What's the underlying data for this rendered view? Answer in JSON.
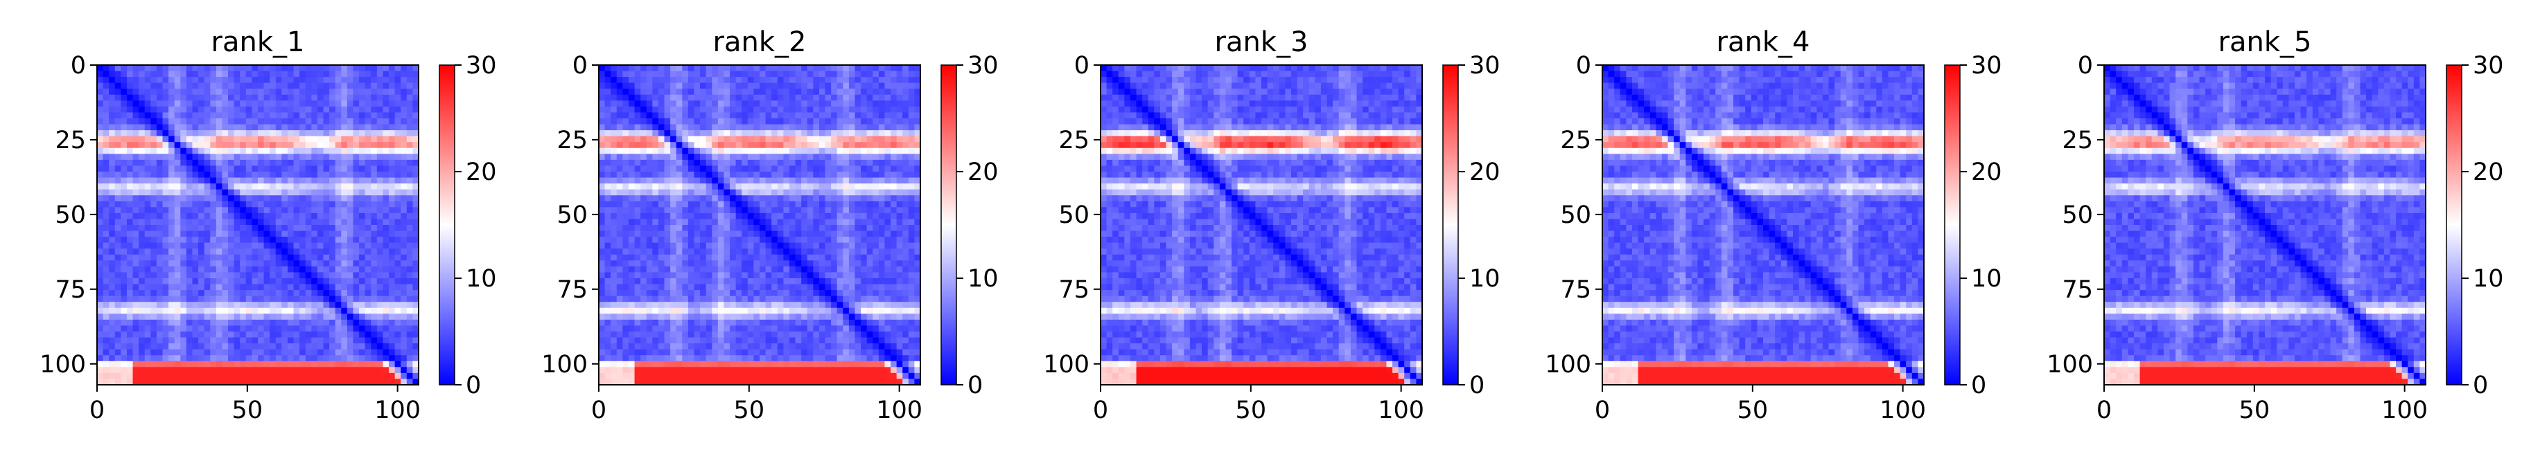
{
  "figure": {
    "panels": [
      {
        "title": "rank_1"
      },
      {
        "title": "rank_2"
      },
      {
        "title": "rank_3"
      },
      {
        "title": "rank_4"
      },
      {
        "title": "rank_5"
      }
    ]
  },
  "chart_data": [
    {
      "type": "heatmap",
      "title": "rank_1",
      "xlim": [
        0,
        107
      ],
      "ylim": [
        107,
        0
      ],
      "xticks": [
        0,
        50,
        100
      ],
      "yticks": [
        0,
        25,
        50,
        75,
        100
      ],
      "colorbar": {
        "range": [
          0,
          30
        ],
        "ticks": [
          0,
          10,
          20,
          30
        ],
        "colormap": "bwr",
        "colors": [
          "#0000ff",
          "#ffffff",
          "#ff0000"
        ]
      },
      "features": {
        "diagonal_value": 0,
        "background_value": 4,
        "stripe_rows": [
          26,
          41,
          82
        ],
        "stripe_values": [
          22,
          13,
          14
        ],
        "bottom_band_rows": [
          99,
          107
        ],
        "bottom_band_value": 28
      }
    },
    {
      "type": "heatmap",
      "title": "rank_2",
      "xlim": [
        0,
        107
      ],
      "ylim": [
        107,
        0
      ],
      "xticks": [
        0,
        50,
        100
      ],
      "yticks": [
        0,
        25,
        50,
        75,
        100
      ],
      "colorbar": {
        "range": [
          0,
          30
        ],
        "ticks": [
          0,
          10,
          20,
          30
        ],
        "colormap": "bwr",
        "colors": [
          "#0000ff",
          "#ffffff",
          "#ff0000"
        ]
      },
      "features": {
        "diagonal_value": 0,
        "background_value": 4,
        "stripe_rows": [
          26,
          41,
          82
        ],
        "stripe_values": [
          23,
          13,
          14
        ],
        "bottom_band_rows": [
          99,
          107
        ],
        "bottom_band_value": 28
      }
    },
    {
      "type": "heatmap",
      "title": "rank_3",
      "xlim": [
        0,
        107
      ],
      "ylim": [
        107,
        0
      ],
      "xticks": [
        0,
        50,
        100
      ],
      "yticks": [
        0,
        25,
        50,
        75,
        100
      ],
      "colorbar": {
        "range": [
          0,
          30
        ],
        "ticks": [
          0,
          10,
          20,
          30
        ],
        "colormap": "bwr",
        "colors": [
          "#0000ff",
          "#ffffff",
          "#ff0000"
        ]
      },
      "features": {
        "diagonal_value": 0,
        "background_value": 4,
        "stripe_rows": [
          26,
          41,
          82
        ],
        "stripe_values": [
          27,
          13,
          14
        ],
        "bottom_band_rows": [
          99,
          107
        ],
        "bottom_band_value": 29
      }
    },
    {
      "type": "heatmap",
      "title": "rank_4",
      "xlim": [
        0,
        107
      ],
      "ylim": [
        107,
        0
      ],
      "xticks": [
        0,
        50,
        100
      ],
      "yticks": [
        0,
        25,
        50,
        75,
        100
      ],
      "colorbar": {
        "range": [
          0,
          30
        ],
        "ticks": [
          0,
          10,
          20,
          30
        ],
        "colormap": "bwr",
        "colors": [
          "#0000ff",
          "#ffffff",
          "#ff0000"
        ]
      },
      "features": {
        "diagonal_value": 0,
        "background_value": 4,
        "stripe_rows": [
          26,
          41,
          82
        ],
        "stripe_values": [
          25,
          13,
          14
        ],
        "bottom_band_rows": [
          99,
          107
        ],
        "bottom_band_value": 28
      }
    },
    {
      "type": "heatmap",
      "title": "rank_5",
      "xlim": [
        0,
        107
      ],
      "ylim": [
        107,
        0
      ],
      "xticks": [
        0,
        50,
        100
      ],
      "yticks": [
        0,
        25,
        50,
        75,
        100
      ],
      "colorbar": {
        "range": [
          0,
          30
        ],
        "ticks": [
          0,
          10,
          20,
          30
        ],
        "colormap": "bwr",
        "colors": [
          "#0000ff",
          "#ffffff",
          "#ff0000"
        ]
      },
      "features": {
        "diagonal_value": 0,
        "background_value": 4,
        "stripe_rows": [
          26,
          41,
          82
        ],
        "stripe_values": [
          22,
          13,
          14
        ],
        "bottom_band_rows": [
          99,
          107
        ],
        "bottom_band_value": 28
      }
    }
  ]
}
